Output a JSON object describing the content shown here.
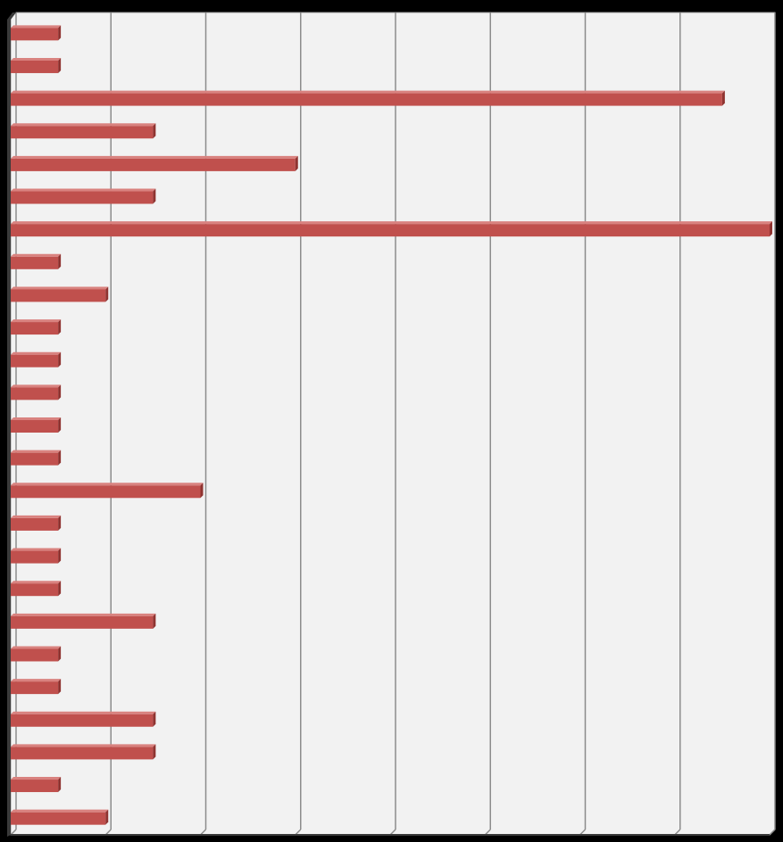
{
  "chart_data": {
    "type": "bar",
    "orientation": "horizontal",
    "style": "3d",
    "title": "",
    "xlabel": "",
    "ylabel": "",
    "grid": true,
    "legend": "none",
    "xlim": [
      0,
      8
    ],
    "categories": [
      "",
      "",
      "",
      "",
      "",
      "",
      "",
      "",
      "",
      "",
      "",
      "",
      "",
      "",
      "",
      "",
      "",
      "",
      "",
      "",
      "",
      "",
      "",
      "",
      ""
    ],
    "values": [
      0.5,
      0.5,
      7.5,
      1.5,
      3.0,
      1.5,
      8.0,
      0.5,
      1.0,
      0.5,
      0.5,
      0.5,
      0.5,
      0.5,
      2.0,
      0.5,
      0.5,
      0.5,
      1.5,
      0.5,
      0.5,
      1.5,
      1.5,
      0.5,
      1.0
    ]
  },
  "colors": {
    "background": "#000000",
    "plot_area": "#f2f2f2",
    "gridline": "#8c8c8c",
    "bar_face": "#c0504d",
    "bar_top": "#d9827f",
    "bar_side": "#8f3330"
  }
}
